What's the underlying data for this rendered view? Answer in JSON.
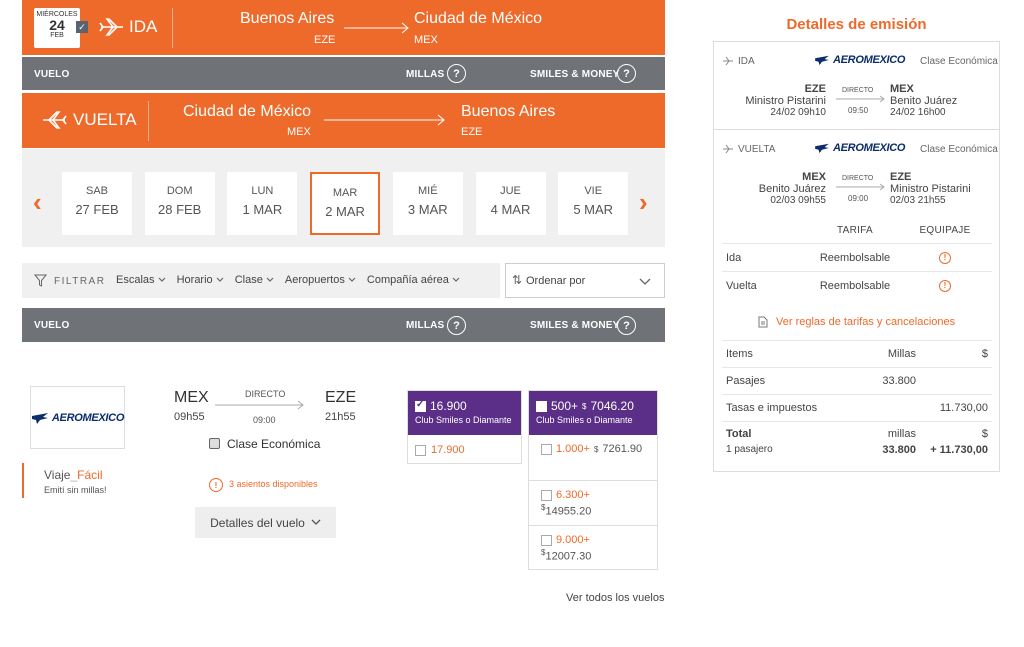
{
  "ida": {
    "weekday": "MIÉRCOLES",
    "day": "24",
    "month": "FEB",
    "label": "IDA",
    "from_city": "Buenos Aires",
    "from_code": "EZE",
    "to_city": "Ciudad de México",
    "to_code": "MEX"
  },
  "header1": {
    "vuelo": "VUELO",
    "millas": "MILLAS",
    "smiles_money": "SMILES & MONEY"
  },
  "vuelta": {
    "label": "VUELTA",
    "from_city": "Ciudad de México",
    "from_code": "MEX",
    "to_city": "Buenos Aires",
    "to_code": "EZE"
  },
  "days": [
    {
      "name": "SAB",
      "date": "27 FEB"
    },
    {
      "name": "DOM",
      "date": "28 FEB"
    },
    {
      "name": "LUN",
      "date": "1 MAR"
    },
    {
      "name": "MAR",
      "date": "2 MAR",
      "selected": true
    },
    {
      "name": "MIÉ",
      "date": "3 MAR"
    },
    {
      "name": "JUE",
      "date": "4 MAR"
    },
    {
      "name": "VIE",
      "date": "5 MAR"
    }
  ],
  "filters": {
    "label": "FILTRAR",
    "items": [
      "Escalas",
      "Horario",
      "Clase",
      "Aeropuertos",
      "Compañía aérea"
    ],
    "sort": "Ordenar por"
  },
  "header2": {
    "vuelo": "VUELO",
    "millas": "MILLAS",
    "smiles_money": "SMILES & MONEY"
  },
  "flight": {
    "airline": "AEROMEXICO",
    "from": "MEX",
    "dep": "09h55",
    "type": "DIRECTO",
    "duration": "09:00",
    "to": "EZE",
    "arr": "21h55",
    "cabin": "Clase Económica",
    "seats": "3 asientos disponibles",
    "details": "Detalles del vuelo",
    "promo_a": "Viaje",
    "promo_b": "Fácil",
    "promo_sub": "Emití sin millas!"
  },
  "miles": {
    "club_value": "16.900",
    "club_label": "Club Smiles o Diamante",
    "regular": "17.900"
  },
  "smiles_money": {
    "club_value": "500+",
    "club_cash": "7046.20",
    "club_label": "Club Smiles o Diamante",
    "options": [
      {
        "miles": "1.000+",
        "cash": "7261.90"
      },
      {
        "miles": "6.300+",
        "cash": "14955.20"
      },
      {
        "miles": "9.000+",
        "cash": "12007.30"
      }
    ]
  },
  "see_all": "Ver todos los vuelos",
  "summary": {
    "title": "Detalles de emisión",
    "legs": [
      {
        "label": "IDA",
        "airline": "AEROMEXICO",
        "cabin": "Clase Económica",
        "from": "EZE",
        "from_name": "Ministro Pistarini",
        "dep": "24/02 09h10",
        "type": "DIRECTO",
        "duration": "09:50",
        "to": "MEX",
        "to_name": "Benito Juárez",
        "arr": "24/02 16h00"
      },
      {
        "label": "VUELTA",
        "airline": "AEROMEXICO",
        "cabin": "Clase Económica",
        "from": "MEX",
        "from_name": "Benito Juárez",
        "dep": "02/03 09h55",
        "type": "DIRECTO",
        "duration": "09:00",
        "to": "EZE",
        "to_name": "Ministro Pistarini",
        "arr": "02/03 21h55"
      }
    ],
    "tarifa": "TARIFA",
    "equipaje": "EQUIPAJE",
    "fare_rows": [
      {
        "leg": "Ida",
        "fare": "Reembolsable"
      },
      {
        "leg": "Vuelta",
        "fare": "Reembolsable"
      }
    ],
    "rules_link": "Ver reglas de tarifas y cancelaciones",
    "items": "Items",
    "millas": "Millas",
    "currency": "$",
    "pasajes": "Pasajes",
    "pasajes_millas": "33.800",
    "tasas": "Tasas e impuestos",
    "tasas_value": "11.730,00",
    "total": "Total",
    "total_millas_lbl": "millas",
    "total_currency": "$",
    "pax": "1 pasajero",
    "total_millas": "33.800",
    "total_value": "+ 11.730,00"
  }
}
